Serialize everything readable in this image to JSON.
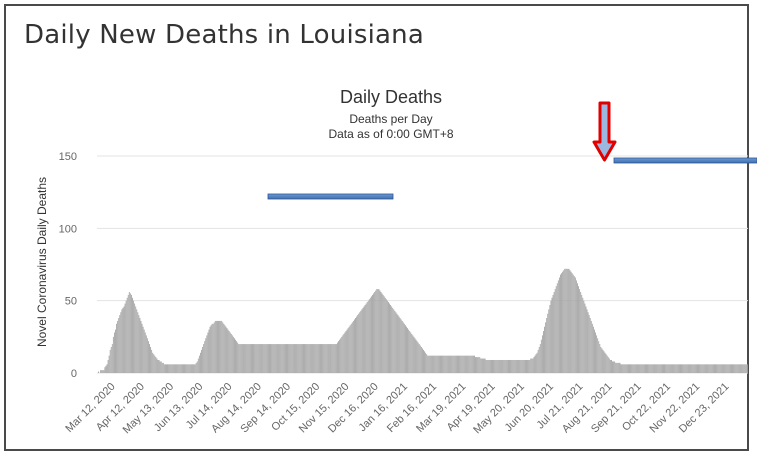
{
  "page_title": "Daily New Deaths in Louisiana",
  "chart_data": {
    "type": "bar",
    "title": "Daily Deaths",
    "subtitle_lines": [
      "Deaths per Day",
      "Data as of 0:00 GMT+8"
    ],
    "ylabel": "Novel Coronavirus Daily Deaths",
    "xlabel": "",
    "ylim": [
      0,
      150
    ],
    "yticks": [
      0,
      50,
      100,
      150
    ],
    "grid": true,
    "bar_color": "#a6a6a6",
    "x_start": "Mar 12, 2020",
    "x_end": "Dec 31, 2021",
    "xtick_labels": [
      "Mar 12, 2020",
      "Apr 12, 2020",
      "May 13, 2020",
      "Jun 13, 2020",
      "Jul 14, 2020",
      "Aug 14, 2020",
      "Sep 14, 2020",
      "Oct 15, 2020",
      "Nov 15, 2020",
      "Dec 16, 2020",
      "Jan 16, 2021",
      "Feb 16, 2021",
      "Mar 19, 2021",
      "Apr 19, 2021",
      "May 20, 2021",
      "Jun 20, 2021",
      "Jul 21, 2021",
      "Aug 21, 2021",
      "Sep 21, 2021",
      "Oct 22, 2021",
      "Nov 22, 2021",
      "Dec 23, 2021"
    ],
    "series": [
      {
        "values": [
          0,
          1,
          0,
          2,
          2,
          2,
          2,
          4,
          5,
          6,
          9,
          12,
          16,
          18,
          20,
          25,
          28,
          30,
          34,
          36,
          38,
          40,
          42,
          44,
          45,
          46,
          48,
          50,
          52,
          54,
          56,
          55,
          54,
          52,
          50,
          48,
          46,
          44,
          42,
          40,
          38,
          36,
          34,
          32,
          30,
          28,
          26,
          24,
          22,
          20,
          18,
          16,
          14,
          13,
          12,
          11,
          10,
          9,
          9,
          8,
          8,
          7,
          7,
          6,
          6,
          6,
          6,
          6,
          6,
          6,
          6,
          6,
          6,
          6,
          6,
          6,
          6,
          6,
          6,
          6,
          6,
          6,
          6,
          6,
          6,
          6,
          6,
          6,
          6,
          6,
          6,
          6,
          6,
          7,
          8,
          10,
          12,
          14,
          16,
          18,
          20,
          22,
          24,
          26,
          28,
          30,
          32,
          33,
          34,
          34,
          35,
          36,
          36,
          36,
          36,
          36,
          36,
          36,
          35,
          34,
          33,
          32,
          31,
          30,
          29,
          28,
          27,
          26,
          25,
          24,
          23,
          22,
          21,
          20,
          20,
          20,
          20,
          20,
          20,
          20,
          20,
          20,
          20,
          20,
          20,
          20,
          20,
          20,
          20,
          20,
          20,
          20,
          20,
          20,
          20,
          20,
          20,
          20,
          20,
          20,
          20,
          20,
          20,
          20,
          20,
          20,
          20,
          20,
          20,
          20,
          20,
          20,
          20,
          20,
          20,
          20,
          20,
          20,
          20,
          20,
          20,
          20,
          20,
          20,
          20,
          20,
          20,
          20,
          20,
          20,
          20,
          20,
          20,
          20,
          20,
          20,
          20,
          20,
          20,
          20,
          20,
          20,
          20,
          20,
          20,
          20,
          20,
          20,
          20,
          20,
          20,
          20,
          20,
          20,
          20,
          20,
          20,
          20,
          20,
          20,
          20,
          20,
          20,
          20,
          20,
          20,
          21,
          22,
          23,
          24,
          25,
          26,
          27,
          28,
          29,
          30,
          31,
          32,
          33,
          34,
          35,
          36,
          37,
          38,
          39,
          40,
          41,
          42,
          43,
          44,
          45,
          46,
          47,
          48,
          49,
          50,
          51,
          52,
          53,
          54,
          55,
          56,
          57,
          58,
          58,
          58,
          57,
          56,
          55,
          54,
          53,
          52,
          51,
          50,
          49,
          48,
          47,
          46,
          45,
          44,
          43,
          42,
          41,
          40,
          39,
          38,
          37,
          36,
          35,
          34,
          33,
          32,
          31,
          30,
          29,
          28,
          27,
          26,
          25,
          24,
          23,
          22,
          21,
          20,
          19,
          18,
          17,
          16,
          15,
          14,
          13,
          12,
          12,
          12,
          12,
          12,
          12,
          12,
          12,
          12,
          12,
          12,
          12,
          12,
          12,
          12,
          12,
          12,
          12,
          12,
          12,
          12,
          12,
          12,
          12,
          12,
          12,
          12,
          12,
          12,
          12,
          12,
          12,
          12,
          12,
          12,
          12,
          12,
          12,
          12,
          12,
          12,
          12,
          12,
          12,
          12,
          11,
          11,
          11,
          11,
          11,
          10,
          10,
          10,
          10,
          10,
          9,
          9,
          9,
          9,
          9,
          9,
          9,
          9,
          9,
          9,
          9,
          9,
          9,
          9,
          9,
          9,
          9,
          9,
          9,
          9,
          9,
          9,
          9,
          9,
          9,
          9,
          9,
          9,
          9,
          9,
          9,
          9,
          9,
          9,
          9,
          9,
          9,
          9,
          9,
          9,
          9,
          9,
          10,
          10,
          10,
          11,
          12,
          13,
          14,
          16,
          18,
          20,
          23,
          26,
          29,
          32,
          35,
          38,
          41,
          44,
          47,
          50,
          52,
          54,
          56,
          58,
          60,
          62,
          64,
          66,
          68,
          69,
          70,
          71,
          72,
          72,
          72,
          72,
          72,
          71,
          70,
          69,
          68,
          67,
          66,
          64,
          62,
          60,
          58,
          56,
          54,
          52,
          50,
          48,
          46,
          44,
          42,
          40,
          38,
          36,
          34,
          32,
          30,
          28,
          26,
          24,
          22,
          20,
          18,
          17,
          16,
          15,
          14,
          13,
          12,
          11,
          10,
          9,
          9,
          8,
          8,
          8,
          7,
          7,
          7,
          7,
          7,
          6,
          6,
          6,
          6,
          6,
          6,
          6,
          6,
          6,
          6,
          6,
          6,
          6,
          6,
          6,
          6,
          6,
          6,
          6,
          6,
          6,
          6,
          6,
          6,
          6,
          6,
          6,
          6,
          6,
          6,
          6,
          6,
          6,
          6,
          6,
          6,
          6,
          6,
          6,
          6,
          6,
          6,
          6,
          6,
          6,
          6,
          6,
          6,
          6,
          6,
          6,
          6,
          6,
          6,
          6,
          6,
          6,
          6,
          6,
          6,
          6,
          6,
          6,
          6,
          6,
          6,
          6,
          6,
          6,
          6,
          6,
          6,
          6,
          6,
          6,
          6,
          6,
          6,
          6,
          6,
          6,
          6,
          6,
          6,
          6,
          6,
          6,
          6,
          6,
          6,
          6,
          6,
          6,
          6,
          6,
          6,
          6,
          6,
          6,
          6,
          6,
          6,
          6,
          6,
          6,
          6,
          6,
          6,
          6,
          6,
          6,
          6,
          6,
          6,
          6,
          6,
          6,
          6,
          6,
          6
        ]
      }
    ],
    "annotations": {
      "arrow_color": "#e00000",
      "line_color": "#4f81bd"
    }
  }
}
